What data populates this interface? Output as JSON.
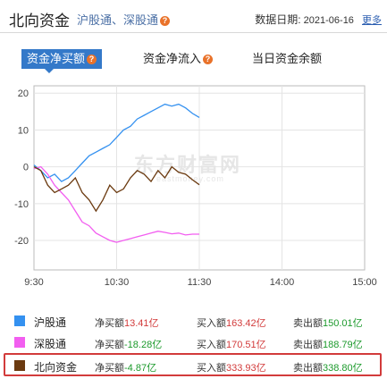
{
  "header": {
    "title": "北向资金",
    "links": [
      "沪股通",
      "、",
      "深股通"
    ],
    "help_mark": "?",
    "date_label": "数据日期:",
    "date_value": "2021-06-16",
    "more": "更多"
  },
  "tabs": [
    {
      "label": "资金净买额",
      "active": true,
      "help": "?"
    },
    {
      "label": "资金净流入",
      "active": false,
      "help": "?"
    },
    {
      "label": "当日资金余额",
      "active": false
    }
  ],
  "watermark": {
    "text": "东方财富网",
    "sub": "eastmoney.com"
  },
  "colors": {
    "accent": "#3479c9",
    "sh": "#3491f0",
    "sz": "#f25ef0",
    "north": "#6b3a10",
    "up": "#d23b3b",
    "down": "#1c9a2c"
  },
  "chart_data": {
    "type": "line",
    "title": "",
    "xlabel": "",
    "ylabel": "",
    "x_ticks": [
      "9:30",
      "10:30",
      "11:30",
      "14:00",
      "15:00"
    ],
    "y_ticks": [
      20,
      10,
      0,
      -10,
      -20
    ],
    "ylim": [
      -28,
      22
    ],
    "x_range_minutes": [
      0,
      240
    ],
    "series": [
      {
        "name": "沪股通",
        "color": "#3491f0",
        "x": [
          0,
          5,
          10,
          15,
          20,
          25,
          30,
          35,
          40,
          45,
          50,
          55,
          60,
          65,
          70,
          75,
          80,
          85,
          90,
          95,
          100,
          105,
          110,
          115,
          120
        ],
        "y": [
          0.5,
          -1,
          -3,
          -2,
          -4,
          -3,
          -1,
          1,
          3,
          4,
          5,
          6,
          8,
          10,
          11,
          13,
          14,
          15,
          16,
          17,
          16.5,
          17,
          16,
          14.5,
          13.41
        ]
      },
      {
        "name": "深股通",
        "color": "#f25ef0",
        "x": [
          0,
          5,
          10,
          15,
          20,
          25,
          30,
          35,
          40,
          45,
          50,
          55,
          60,
          65,
          70,
          75,
          80,
          85,
          90,
          95,
          100,
          105,
          110,
          115,
          120
        ],
        "y": [
          -0.5,
          0,
          -2,
          -5,
          -7,
          -9,
          -12,
          -15,
          -16,
          -18,
          -19,
          -20,
          -20.5,
          -20,
          -19.5,
          -19,
          -18.5,
          -18,
          -17.5,
          -17.8,
          -18.2,
          -18,
          -18.5,
          -18.3,
          -18.28
        ]
      },
      {
        "name": "北向资金",
        "color": "#6b3a10",
        "x": [
          0,
          5,
          10,
          15,
          20,
          25,
          30,
          35,
          40,
          45,
          50,
          55,
          60,
          65,
          70,
          75,
          80,
          85,
          90,
          95,
          100,
          105,
          110,
          115,
          120
        ],
        "y": [
          0,
          -1,
          -5,
          -7,
          -6,
          -5,
          -3,
          -7,
          -9,
          -12,
          -9,
          -5,
          -7,
          -6,
          -3,
          -1,
          -2,
          -4,
          -1,
          -3,
          0,
          -1.5,
          -2,
          -3.5,
          -4.87
        ]
      }
    ]
  },
  "legend": [
    {
      "name": "沪股通",
      "color": "#3491f0",
      "net_label": "净买额",
      "net_value": "13.41亿",
      "net_dir": "up",
      "buy_label": "买入额",
      "buy_value": "163.42亿",
      "sell_label": "卖出额",
      "sell_value": "150.01亿",
      "highlight": false
    },
    {
      "name": "深股通",
      "color": "#f25ef0",
      "net_label": "净买额",
      "net_value": "-18.28亿",
      "net_dir": "down",
      "buy_label": "买入额",
      "buy_value": "170.51亿",
      "sell_label": "卖出额",
      "sell_value": "188.79亿",
      "highlight": false
    },
    {
      "name": "北向资金",
      "color": "#6b3a10",
      "net_label": "净买额",
      "net_value": "-4.87亿",
      "net_dir": "down",
      "buy_label": "买入额",
      "buy_value": "333.93亿",
      "sell_label": "卖出额",
      "sell_value": "338.80亿",
      "highlight": true
    }
  ]
}
